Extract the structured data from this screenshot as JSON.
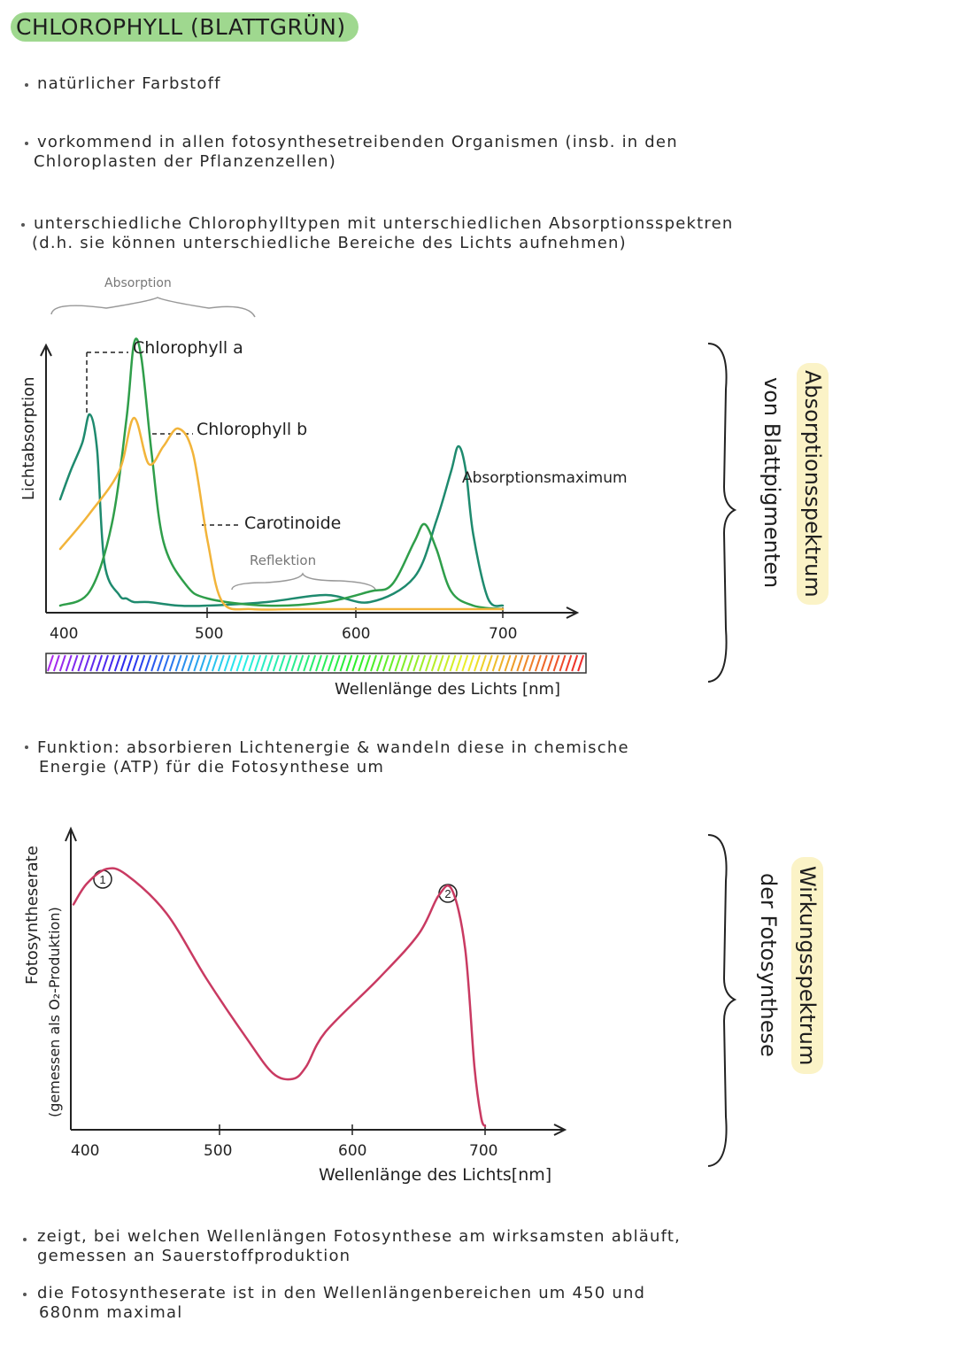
{
  "title": "CHLOROPHYLL (BLATTGRÜN)",
  "bullets_top": [
    {
      "lines": [
        "natürlicher Farbstoff"
      ]
    },
    {
      "lines": [
        "vorkommend in allen fotosynthesetreibenden Organismen (insb. in den",
        "Chloroplasten der Pflanzenzellen)"
      ]
    },
    {
      "lines": [
        "unterschiedliche Chlorophylltypen mit unterschiedlichen Absorptionsspektren",
        "(d.h. sie können unterschiedliche Bereiche des Lichts aufnehmen)"
      ]
    }
  ],
  "chart1": {
    "brace_label": "Absorption",
    "ylabel": "Lichtabsorption",
    "xlabel": "Wellenlänge des Lichts [nm]",
    "labels": {
      "chl_a": "Chlorophyll a",
      "chl_b": "Chlorophyll b",
      "carot": "Carotinoide",
      "reflektion": "Reflektion",
      "absmax": "Absorptionsmaximum"
    },
    "side_title": "Absorptionsspektrum",
    "side_sub": "von Blattpigmenten"
  },
  "function_bullet": {
    "lines": [
      "Funktion: absorbieren Lichtenergie & wandeln diese in chemische",
      "Energie (ATP) für die Fotosynthese um"
    ]
  },
  "chart2": {
    "ylabel1": "Fotosyntheserate",
    "ylabel2": "(gemessen als O₂-Produktion)",
    "xlabel": "Wellenlänge des Lichts[nm]",
    "marker1": "1",
    "marker2": "2",
    "side_title": "Wirkungsspektrum",
    "side_sub": "der Fotosynthese"
  },
  "bullets_bottom": [
    {
      "lines": [
        "zeigt, bei welchen Wellenlängen Fotosynthese am wirksamsten abläuft,",
        "gemessen an Sauerstoffproduktion"
      ]
    },
    {
      "lines": [
        "die Fotosyntheserate ist in den Wellenlängenbereichen um 450 und",
        "680nm maximal"
      ]
    }
  ],
  "chart_data": [
    {
      "type": "line",
      "title": "",
      "xlabel": "Wellenlänge des Lichts [nm]",
      "ylabel": "Lichtabsorption",
      "xlim": [
        400,
        700
      ],
      "x_ticks": [
        "400",
        "500",
        "600",
        "700"
      ],
      "series": [
        {
          "name": "Chlorophyll a",
          "color": "#1e8a6e",
          "x": [
            400,
            407,
            415,
            420,
            425,
            430,
            440,
            445,
            450,
            460,
            480,
            500,
            540,
            580,
            610,
            640,
            655,
            665,
            670,
            675,
            680,
            690,
            700
          ],
          "y": [
            0.32,
            0.4,
            0.48,
            0.56,
            0.46,
            0.14,
            0.05,
            0.04,
            0.03,
            0.03,
            0.02,
            0.02,
            0.03,
            0.05,
            0.03,
            0.1,
            0.26,
            0.4,
            0.47,
            0.4,
            0.22,
            0.04,
            0.02
          ]
        },
        {
          "name": "Chlorophyll b",
          "color": "#2f9e4a",
          "x": [
            400,
            420,
            435,
            445,
            450,
            455,
            462,
            470,
            485,
            500,
            540,
            580,
            610,
            625,
            640,
            647,
            655,
            665,
            680,
            700
          ],
          "y": [
            0.02,
            0.06,
            0.25,
            0.55,
            0.76,
            0.72,
            0.45,
            0.2,
            0.08,
            0.04,
            0.02,
            0.03,
            0.06,
            0.08,
            0.2,
            0.25,
            0.18,
            0.06,
            0.02,
            0.01
          ]
        },
        {
          "name": "Carotinoide",
          "color": "#f2b43a",
          "x": [
            400,
            420,
            440,
            450,
            460,
            470,
            480,
            490,
            500,
            510,
            530,
            560,
            600,
            640,
            700
          ],
          "y": [
            0.18,
            0.28,
            0.4,
            0.55,
            0.42,
            0.47,
            0.52,
            0.45,
            0.2,
            0.03,
            0.01,
            0.01,
            0.01,
            0.01,
            0.01
          ]
        }
      ]
    },
    {
      "type": "line",
      "title": "",
      "xlabel": "Wellenlänge des Lichts[nm]",
      "ylabel": "Fotosyntheserate (gemessen als O₂-Produktion)",
      "xlim": [
        400,
        700
      ],
      "x_ticks": [
        "400",
        "500",
        "600",
        "700"
      ],
      "series": [
        {
          "color": "#c93a62",
          "x": [
            390,
            400,
            415,
            430,
            460,
            490,
            520,
            540,
            555,
            565,
            580,
            620,
            650,
            665,
            675,
            685,
            692,
            697,
            700
          ],
          "y": [
            0.75,
            0.82,
            0.87,
            0.85,
            0.72,
            0.5,
            0.3,
            0.18,
            0.16,
            0.2,
            0.32,
            0.5,
            0.65,
            0.78,
            0.8,
            0.6,
            0.2,
            0.03,
            0.0
          ]
        }
      ]
    }
  ]
}
